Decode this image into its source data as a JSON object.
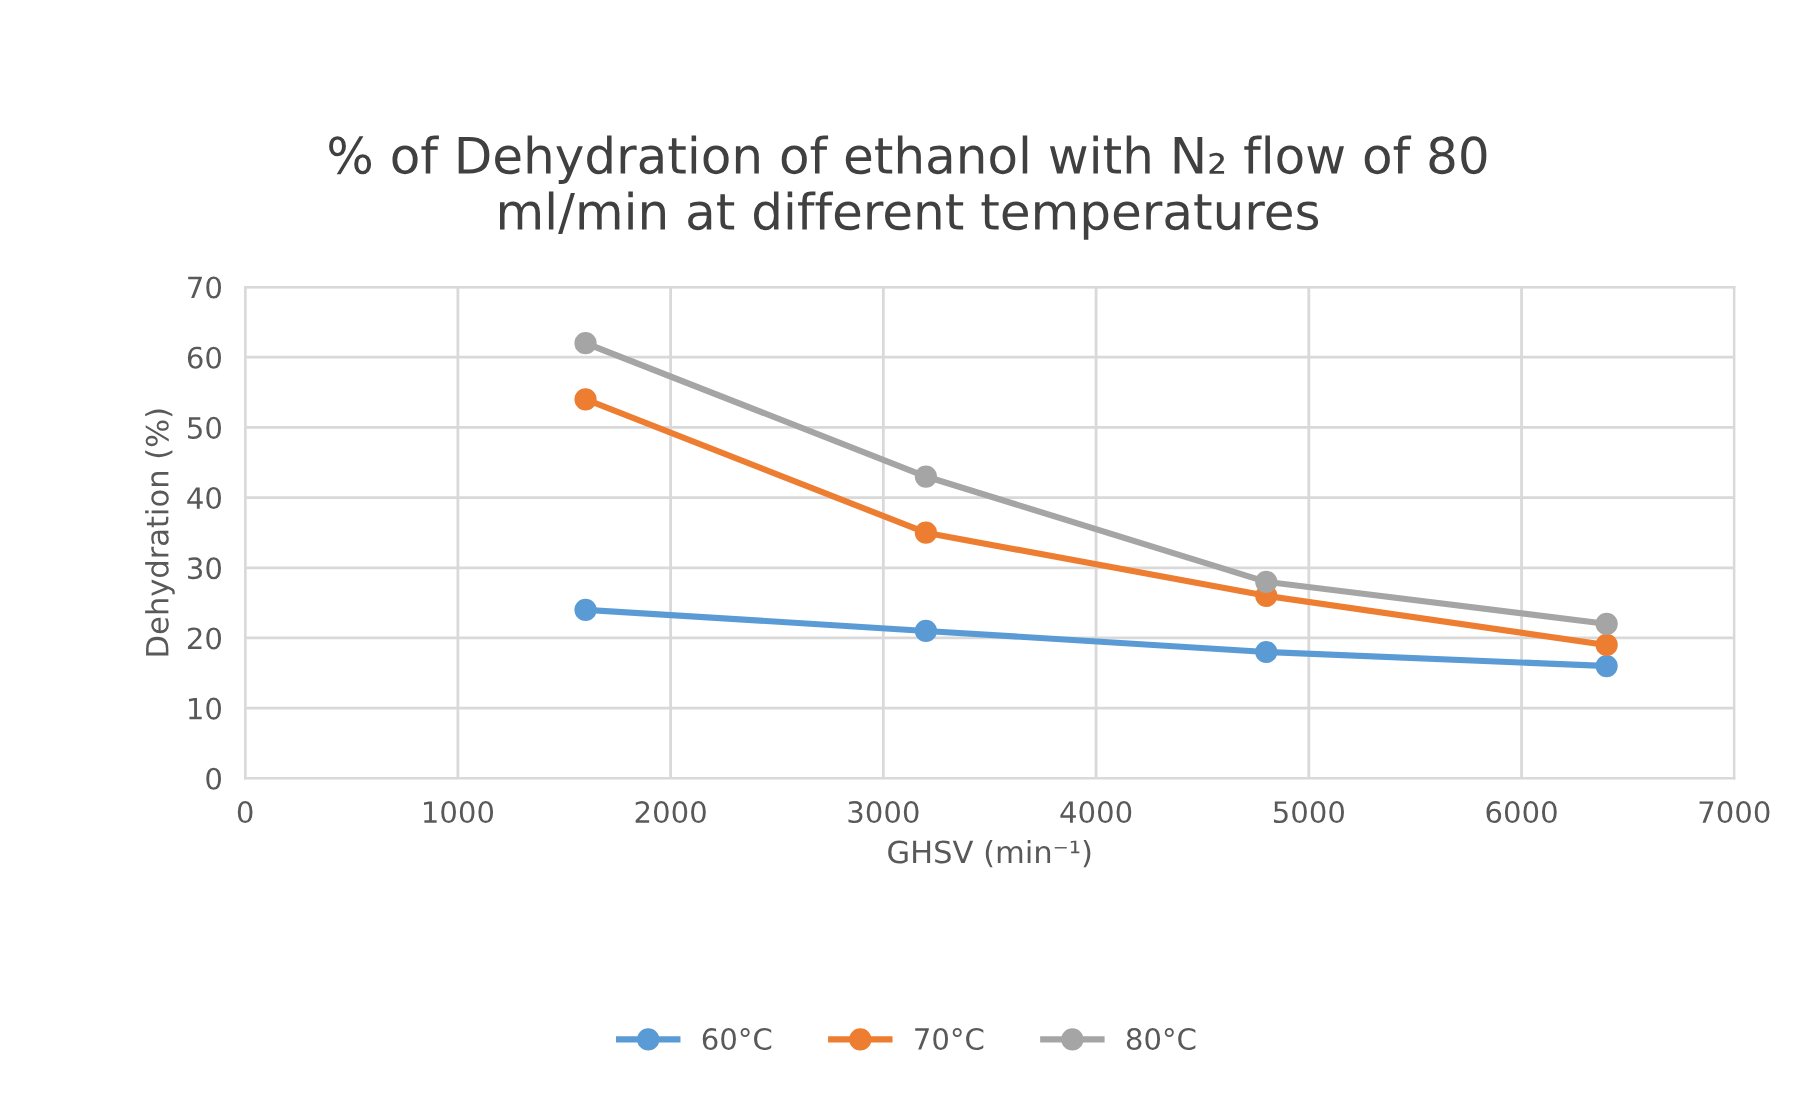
{
  "chart_data": {
    "type": "line",
    "title": "% of Dehydration of ethanol with N₂ flow of 80\nml/min at different temperatures",
    "xlabel": "GHSV (min⁻¹)",
    "ylabel": "Dehydration (%)",
    "x": [
      1600,
      3200,
      4800,
      6400
    ],
    "series": [
      {
        "name": "60°C",
        "color": "#5b9bd5",
        "values": [
          24,
          21,
          18,
          16
        ]
      },
      {
        "name": "70°C",
        "color": "#ed7d31",
        "values": [
          54,
          35,
          26,
          19
        ]
      },
      {
        "name": "80°C",
        "color": "#a5a5a5",
        "values": [
          62,
          43,
          28,
          22
        ]
      }
    ],
    "xlim": [
      0,
      7000
    ],
    "xticks": [
      0,
      1000,
      2000,
      3000,
      4000,
      5000,
      6000,
      7000
    ],
    "ylim": [
      0,
      70
    ],
    "yticks": [
      0,
      10,
      20,
      30,
      40,
      50,
      60,
      70
    ],
    "grid": true,
    "legend": "bottom",
    "marker": "circle",
    "line_style": "solid"
  }
}
